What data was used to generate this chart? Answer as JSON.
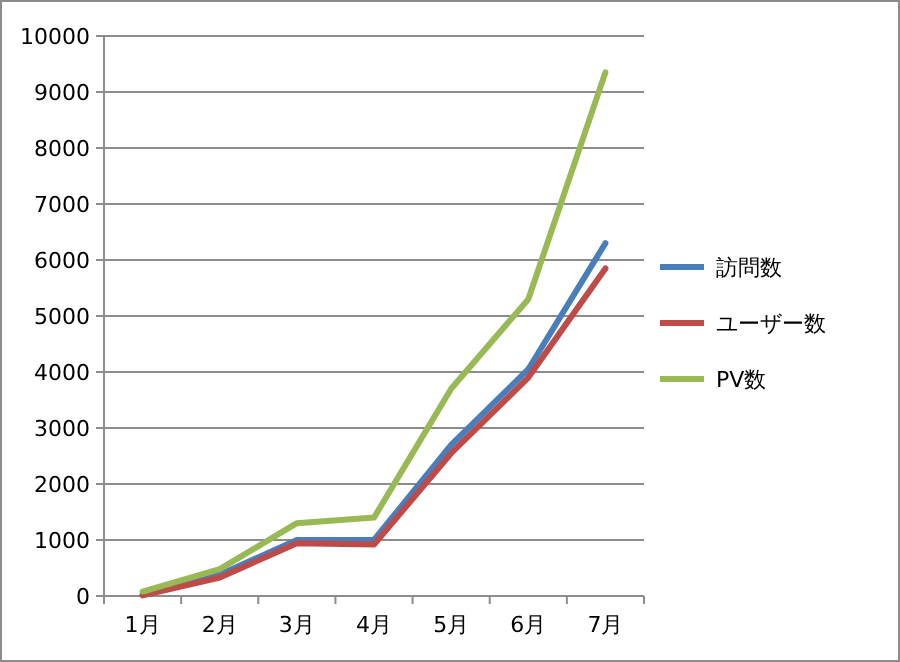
{
  "chart_data": {
    "type": "line",
    "categories": [
      "1月",
      "2月",
      "3月",
      "4月",
      "5月",
      "6月",
      "7月"
    ],
    "series": [
      {
        "name": "訪問数",
        "color": "#4a7ebb",
        "values": [
          30,
          380,
          1000,
          1000,
          2700,
          4050,
          6300
        ]
      },
      {
        "name": "ユーザー数",
        "color": "#be4b48",
        "values": [
          10,
          330,
          940,
          920,
          2550,
          3900,
          5850
        ]
      },
      {
        "name": "PV数",
        "color": "#98b954",
        "values": [
          80,
          480,
          1300,
          1400,
          3700,
          5300,
          9350
        ]
      }
    ],
    "ylim": [
      0,
      10000
    ],
    "yticks": [
      0,
      1000,
      2000,
      3000,
      4000,
      5000,
      6000,
      7000,
      8000,
      9000,
      10000
    ],
    "grid": "y",
    "legend": "right",
    "marker": "none",
    "line_style": "solid"
  }
}
